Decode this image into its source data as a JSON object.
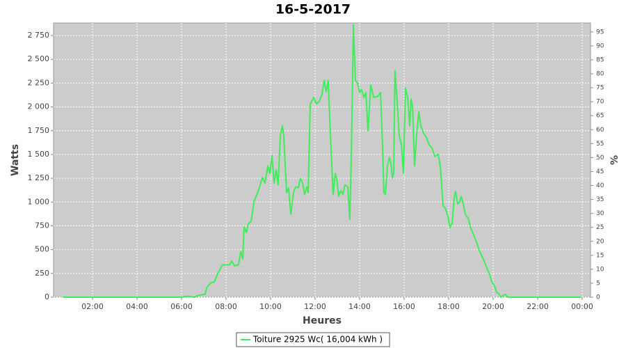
{
  "chart_data": {
    "type": "line",
    "title": "16-5-2017",
    "x_label": "Heures",
    "y_label": "Watts",
    "y2_label": "%",
    "x": [
      0.66,
      1.59,
      2.53,
      3.47,
      4.41,
      5.34,
      5.97,
      6.28,
      6.59,
      6.75,
      7.06,
      7.13,
      7.31,
      7.47,
      7.63,
      7.84,
      8.16,
      8.25,
      8.38,
      8.56,
      8.66,
      8.75,
      8.81,
      8.91,
      9.0,
      9.13,
      9.25,
      9.47,
      9.63,
      9.75,
      9.88,
      9.97,
      10.06,
      10.16,
      10.25,
      10.34,
      10.44,
      10.53,
      10.59,
      10.72,
      10.81,
      10.91,
      11.03,
      11.13,
      11.25,
      11.34,
      11.44,
      11.53,
      11.63,
      11.69,
      11.78,
      11.94,
      12.06,
      12.19,
      12.31,
      12.41,
      12.5,
      12.59,
      12.69,
      12.81,
      12.91,
      12.97,
      13.06,
      13.16,
      13.25,
      13.34,
      13.47,
      13.56,
      13.63,
      13.72,
      13.81,
      13.91,
      14.0,
      14.09,
      14.19,
      14.28,
      14.38,
      14.5,
      14.63,
      14.81,
      14.94,
      15.03,
      15.09,
      15.16,
      15.25,
      15.34,
      15.41,
      15.47,
      15.53,
      15.59,
      15.69,
      15.78,
      15.88,
      15.97,
      16.06,
      16.16,
      16.25,
      16.31,
      16.38,
      16.47,
      16.56,
      16.66,
      16.75,
      16.88,
      17.0,
      17.13,
      17.25,
      17.38,
      17.53,
      17.63,
      17.75,
      17.84,
      17.97,
      18.06,
      18.16,
      18.25,
      18.31,
      18.41,
      18.5,
      18.56,
      18.66,
      18.75,
      18.88,
      19.0,
      19.13,
      19.25,
      19.38,
      19.5,
      19.63,
      19.75,
      19.84,
      19.94,
      20.06,
      20.16,
      20.25,
      20.34,
      20.47,
      20.56,
      20.66,
      21.59,
      22.84,
      23.94
    ],
    "series": [
      {
        "name": "Toiture 2925 Wc( 16,004 kWh )",
        "color": "#3ded5a",
        "values": [
          0,
          0,
          0,
          0,
          0,
          0,
          0,
          10,
          0,
          20,
          30,
          100,
          150,
          160,
          250,
          340,
          340,
          380,
          330,
          340,
          480,
          400,
          740,
          680,
          770,
          800,
          1000,
          1130,
          1260,
          1200,
          1380,
          1300,
          1490,
          1200,
          1340,
          1180,
          1700,
          1800,
          1700,
          1100,
          1150,
          870,
          1100,
          1160,
          1150,
          1250,
          1200,
          1080,
          1160,
          1100,
          2030,
          2100,
          2030,
          2060,
          2130,
          2280,
          2160,
          2280,
          1700,
          1080,
          1300,
          1250,
          1060,
          1120,
          1080,
          1180,
          1160,
          820,
          1500,
          2860,
          2280,
          2250,
          2150,
          2180,
          2100,
          2150,
          1750,
          2230,
          2100,
          2110,
          2150,
          1600,
          1100,
          1080,
          1380,
          1470,
          1400,
          1250,
          1300,
          2380,
          2050,
          1700,
          1600,
          1300,
          2200,
          2100,
          1800,
          2080,
          2000,
          1380,
          1700,
          1950,
          1800,
          1720,
          1680,
          1600,
          1570,
          1480,
          1500,
          1370,
          960,
          940,
          850,
          730,
          780,
          1050,
          1110,
          980,
          1000,
          1060,
          980,
          870,
          830,
          720,
          650,
          580,
          490,
          430,
          360,
          290,
          240,
          160,
          120,
          50,
          40,
          0,
          20,
          30,
          0,
          0,
          0,
          0
        ]
      }
    ],
    "xlim": [
      0.25,
      24.375
    ],
    "xticks": [
      {
        "value": 2,
        "label": "02:00"
      },
      {
        "value": 4,
        "label": "04:00"
      },
      {
        "value": 6,
        "label": "06:00"
      },
      {
        "value": 8,
        "label": "08:00"
      },
      {
        "value": 10,
        "label": "10:00"
      },
      {
        "value": 12,
        "label": "12:00"
      },
      {
        "value": 14,
        "label": "14:00"
      },
      {
        "value": 16,
        "label": "16:00"
      },
      {
        "value": 18,
        "label": "18:00"
      },
      {
        "value": 20,
        "label": "20:00"
      },
      {
        "value": 22,
        "label": "22:00"
      },
      {
        "value": 24,
        "label": "00:00"
      }
    ],
    "ylim": [
      0,
      2882
    ],
    "yticks": [
      0,
      250,
      500,
      750,
      {
        "value": 1000,
        "label": "1 000"
      },
      {
        "value": 1250,
        "label": "1 250"
      },
      {
        "value": 1500,
        "label": "1 500"
      },
      {
        "value": 1750,
        "label": "1 750"
      },
      {
        "value": 2000,
        "label": "2 000"
      },
      {
        "value": 2250,
        "label": "2 250"
      },
      {
        "value": 2500,
        "label": "2 500"
      },
      {
        "value": 2750,
        "label": "2 750"
      }
    ],
    "y2lim": [
      0,
      98.2
    ],
    "y2ticks": [
      0,
      5,
      10,
      15,
      20,
      25,
      30,
      35,
      40,
      45,
      50,
      55,
      60,
      65,
      70,
      75,
      80,
      85,
      90,
      95
    ],
    "grid": true,
    "legend": "bottom"
  }
}
